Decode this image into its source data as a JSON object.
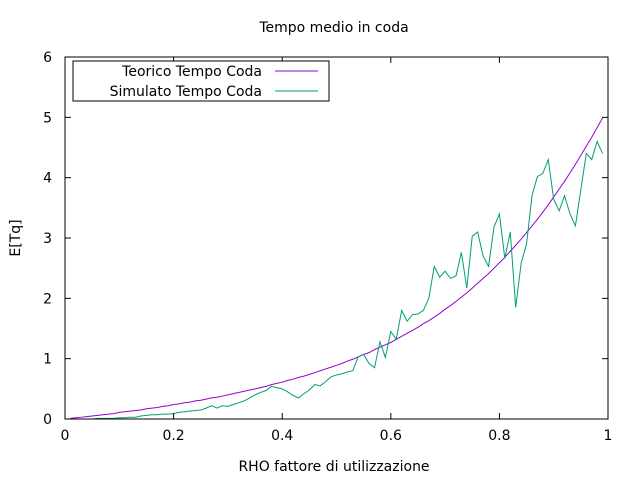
{
  "chart_data": {
    "type": "line",
    "title": "Tempo medio in coda",
    "xlabel": "RHO fattore di utilizzazione",
    "ylabel": "E[Tq]",
    "xlim": [
      0,
      1
    ],
    "ylim": [
      0,
      6
    ],
    "xticks": [
      0,
      0.2,
      0.4,
      0.6,
      0.8,
      1
    ],
    "xtick_labels": [
      "0",
      "0.2",
      "0.4",
      "0.6",
      "0.8",
      "1"
    ],
    "yticks": [
      0,
      1,
      2,
      3,
      4,
      5,
      6
    ],
    "ytick_labels": [
      "0",
      "1",
      "2",
      "3",
      "4",
      "5",
      "6"
    ],
    "grid": false,
    "legend_position": "top-left",
    "series": [
      {
        "name": "Teorico Tempo Coda",
        "color": "#9400d3",
        "points": [
          [
            0.01,
            0.01
          ],
          [
            0.02,
            0.02
          ],
          [
            0.03,
            0.03
          ],
          [
            0.04,
            0.04
          ],
          [
            0.05,
            0.05
          ],
          [
            0.06,
            0.06
          ],
          [
            0.07,
            0.07
          ],
          [
            0.08,
            0.08
          ],
          [
            0.09,
            0.09
          ],
          [
            0.1,
            0.11
          ],
          [
            0.11,
            0.12
          ],
          [
            0.12,
            0.13
          ],
          [
            0.13,
            0.14
          ],
          [
            0.14,
            0.15
          ],
          [
            0.15,
            0.17
          ],
          [
            0.16,
            0.18
          ],
          [
            0.17,
            0.19
          ],
          [
            0.18,
            0.21
          ],
          [
            0.19,
            0.22
          ],
          [
            0.2,
            0.24
          ],
          [
            0.21,
            0.25
          ],
          [
            0.22,
            0.27
          ],
          [
            0.23,
            0.28
          ],
          [
            0.24,
            0.3
          ],
          [
            0.25,
            0.31
          ],
          [
            0.26,
            0.33
          ],
          [
            0.27,
            0.35
          ],
          [
            0.28,
            0.36
          ],
          [
            0.29,
            0.38
          ],
          [
            0.3,
            0.4
          ],
          [
            0.31,
            0.42
          ],
          [
            0.32,
            0.44
          ],
          [
            0.33,
            0.46
          ],
          [
            0.34,
            0.48
          ],
          [
            0.35,
            0.5
          ],
          [
            0.36,
            0.52
          ],
          [
            0.37,
            0.54
          ],
          [
            0.38,
            0.57
          ],
          [
            0.39,
            0.59
          ],
          [
            0.4,
            0.61
          ],
          [
            0.41,
            0.64
          ],
          [
            0.42,
            0.66
          ],
          [
            0.43,
            0.69
          ],
          [
            0.44,
            0.71
          ],
          [
            0.45,
            0.74
          ],
          [
            0.46,
            0.77
          ],
          [
            0.47,
            0.8
          ],
          [
            0.48,
            0.83
          ],
          [
            0.49,
            0.86
          ],
          [
            0.5,
            0.89
          ],
          [
            0.51,
            0.92
          ],
          [
            0.52,
            0.96
          ],
          [
            0.53,
            0.99
          ],
          [
            0.54,
            1.03
          ],
          [
            0.55,
            1.07
          ],
          [
            0.56,
            1.1
          ],
          [
            0.57,
            1.15
          ],
          [
            0.58,
            1.19
          ],
          [
            0.59,
            1.23
          ],
          [
            0.6,
            1.27
          ],
          [
            0.61,
            1.32
          ],
          [
            0.62,
            1.37
          ],
          [
            0.63,
            1.42
          ],
          [
            0.64,
            1.47
          ],
          [
            0.65,
            1.52
          ],
          [
            0.66,
            1.58
          ],
          [
            0.67,
            1.63
          ],
          [
            0.68,
            1.69
          ],
          [
            0.69,
            1.75
          ],
          [
            0.7,
            1.82
          ],
          [
            0.71,
            1.88
          ],
          [
            0.72,
            1.95
          ],
          [
            0.73,
            2.02
          ],
          [
            0.74,
            2.09
          ],
          [
            0.75,
            2.17
          ],
          [
            0.76,
            2.25
          ],
          [
            0.77,
            2.33
          ],
          [
            0.78,
            2.41
          ],
          [
            0.79,
            2.5
          ],
          [
            0.8,
            2.59
          ],
          [
            0.81,
            2.68
          ],
          [
            0.82,
            2.78
          ],
          [
            0.83,
            2.88
          ],
          [
            0.84,
            2.98
          ],
          [
            0.85,
            3.09
          ],
          [
            0.86,
            3.2
          ],
          [
            0.87,
            3.31
          ],
          [
            0.88,
            3.43
          ],
          [
            0.89,
            3.55
          ],
          [
            0.9,
            3.68
          ],
          [
            0.91,
            3.81
          ],
          [
            0.92,
            3.94
          ],
          [
            0.93,
            4.08
          ],
          [
            0.94,
            4.22
          ],
          [
            0.95,
            4.37
          ],
          [
            0.96,
            4.52
          ],
          [
            0.97,
            4.67
          ],
          [
            0.98,
            4.83
          ],
          [
            0.99,
            4.99
          ]
        ]
      },
      {
        "name": "Simulato Tempo Coda",
        "color": "#009e73",
        "points": [
          [
            0.01,
            0.0
          ],
          [
            0.02,
            0.0
          ],
          [
            0.03,
            0.0
          ],
          [
            0.04,
            0.0
          ],
          [
            0.05,
            0.0
          ],
          [
            0.06,
            0.01
          ],
          [
            0.07,
            0.01
          ],
          [
            0.08,
            0.01
          ],
          [
            0.09,
            0.01
          ],
          [
            0.1,
            0.02
          ],
          [
            0.11,
            0.02
          ],
          [
            0.12,
            0.03
          ],
          [
            0.13,
            0.03
          ],
          [
            0.14,
            0.05
          ],
          [
            0.15,
            0.06
          ],
          [
            0.16,
            0.07
          ],
          [
            0.17,
            0.07
          ],
          [
            0.18,
            0.08
          ],
          [
            0.19,
            0.08
          ],
          [
            0.2,
            0.09
          ],
          [
            0.21,
            0.11
          ],
          [
            0.22,
            0.12
          ],
          [
            0.23,
            0.13
          ],
          [
            0.24,
            0.14
          ],
          [
            0.25,
            0.15
          ],
          [
            0.26,
            0.18
          ],
          [
            0.27,
            0.22
          ],
          [
            0.28,
            0.18
          ],
          [
            0.29,
            0.22
          ],
          [
            0.3,
            0.21
          ],
          [
            0.31,
            0.24
          ],
          [
            0.32,
            0.27
          ],
          [
            0.33,
            0.3
          ],
          [
            0.34,
            0.35
          ],
          [
            0.35,
            0.4
          ],
          [
            0.36,
            0.44
          ],
          [
            0.37,
            0.47
          ],
          [
            0.38,
            0.54
          ],
          [
            0.39,
            0.52
          ],
          [
            0.4,
            0.5
          ],
          [
            0.41,
            0.45
          ],
          [
            0.42,
            0.39
          ],
          [
            0.43,
            0.35
          ],
          [
            0.44,
            0.42
          ],
          [
            0.45,
            0.48
          ],
          [
            0.46,
            0.57
          ],
          [
            0.47,
            0.55
          ],
          [
            0.48,
            0.62
          ],
          [
            0.49,
            0.7
          ],
          [
            0.5,
            0.73
          ],
          [
            0.51,
            0.75
          ],
          [
            0.52,
            0.78
          ],
          [
            0.53,
            0.8
          ],
          [
            0.54,
            1.03
          ],
          [
            0.55,
            1.07
          ],
          [
            0.56,
            0.92
          ],
          [
            0.57,
            0.85
          ],
          [
            0.58,
            1.28
          ],
          [
            0.59,
            1.02
          ],
          [
            0.6,
            1.45
          ],
          [
            0.61,
            1.32
          ],
          [
            0.62,
            1.8
          ],
          [
            0.63,
            1.62
          ],
          [
            0.64,
            1.73
          ],
          [
            0.65,
            1.74
          ],
          [
            0.66,
            1.8
          ],
          [
            0.67,
            2.0
          ],
          [
            0.68,
            2.53
          ],
          [
            0.69,
            2.35
          ],
          [
            0.7,
            2.45
          ],
          [
            0.71,
            2.33
          ],
          [
            0.72,
            2.37
          ],
          [
            0.73,
            2.76
          ],
          [
            0.74,
            2.17
          ],
          [
            0.75,
            3.03
          ],
          [
            0.76,
            3.1
          ],
          [
            0.77,
            2.7
          ],
          [
            0.78,
            2.53
          ],
          [
            0.79,
            3.18
          ],
          [
            0.8,
            3.4
          ],
          [
            0.81,
            2.66
          ],
          [
            0.82,
            3.1
          ],
          [
            0.83,
            1.85
          ],
          [
            0.84,
            2.58
          ],
          [
            0.85,
            2.9
          ],
          [
            0.86,
            3.7
          ],
          [
            0.87,
            4.02
          ],
          [
            0.88,
            4.07
          ],
          [
            0.89,
            4.3
          ],
          [
            0.9,
            3.64
          ],
          [
            0.91,
            3.45
          ],
          [
            0.92,
            3.7
          ],
          [
            0.93,
            3.4
          ],
          [
            0.94,
            3.2
          ],
          [
            0.95,
            3.8
          ],
          [
            0.96,
            4.4
          ],
          [
            0.97,
            4.3
          ],
          [
            0.98,
            4.6
          ],
          [
            0.99,
            4.4
          ]
        ]
      }
    ]
  }
}
